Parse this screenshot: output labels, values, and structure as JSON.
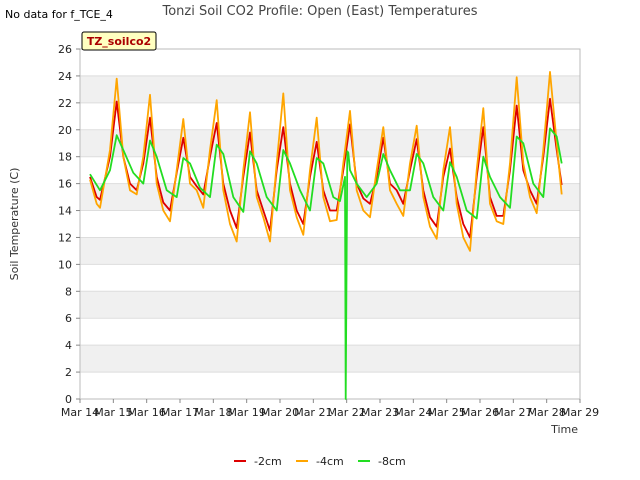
{
  "header": {
    "title": "Tonzi Soil CO2 Profile: Open (East) Temperatures",
    "no_data_note": "No data for f_TCE_4",
    "tag": "TZ_soilco2"
  },
  "colors": {
    "-2cm": "#dd0000",
    "-4cm": "#ffa500",
    "-8cm": "#22dd22",
    "band": "#f0f0f0",
    "tag_fill": "#ffffc0"
  },
  "chart_data": {
    "type": "line",
    "title": "Tonzi Soil CO2 Profile: Open (East) Temperatures",
    "xlabel": "Time",
    "ylabel": "Soil Temperature (C)",
    "xlim": [
      "Mar 14",
      "Mar 29"
    ],
    "ylim": [
      0,
      26
    ],
    "x_ticks": [
      "Mar 14",
      "Mar 15",
      "Mar 16",
      "Mar 17",
      "Mar 18",
      "Mar 19",
      "Mar 20",
      "Mar 21",
      "Mar 22",
      "Mar 23",
      "Mar 24",
      "Mar 25",
      "Mar 26",
      "Mar 27",
      "Mar 28",
      "Mar 29"
    ],
    "y_ticks": [
      0,
      2,
      4,
      6,
      8,
      10,
      12,
      14,
      16,
      18,
      20,
      22,
      24,
      26
    ],
    "grid": true,
    "legend_position": "bottom",
    "series": [
      {
        "name": "-2cm",
        "x": [
          14.3,
          14.5,
          14.6,
          14.9,
          15.1,
          15.3,
          15.5,
          15.7,
          15.9,
          16.1,
          16.3,
          16.5,
          16.7,
          16.9,
          17.1,
          17.3,
          17.5,
          17.7,
          17.9,
          18.1,
          18.3,
          18.5,
          18.7,
          18.9,
          19.1,
          19.3,
          19.5,
          19.7,
          19.9,
          20.1,
          20.3,
          20.5,
          20.7,
          20.9,
          21.1,
          21.3,
          21.5,
          21.7,
          21.9,
          22.1,
          22.3,
          22.5,
          22.7,
          22.9,
          23.1,
          23.3,
          23.5,
          23.7,
          23.9,
          24.1,
          24.3,
          24.5,
          24.7,
          24.9,
          25.1,
          25.3,
          25.5,
          25.7,
          25.9,
          26.1,
          26.3,
          26.5,
          26.7,
          26.9,
          27.1,
          27.3,
          27.5,
          27.7,
          27.9,
          28.1,
          28.3,
          28.45
        ],
        "y": [
          16.5,
          15.0,
          14.8,
          18.0,
          22.1,
          18.0,
          16.0,
          15.5,
          17.5,
          20.9,
          16.5,
          14.6,
          14.0,
          16.8,
          19.4,
          16.5,
          15.8,
          15.2,
          18.0,
          20.5,
          16.0,
          14.0,
          12.7,
          16.5,
          19.8,
          15.5,
          14.0,
          12.5,
          17.0,
          20.2,
          16.0,
          14.0,
          13.0,
          16.5,
          19.1,
          15.5,
          14.0,
          14.0,
          17.0,
          20.4,
          16.0,
          14.9,
          14.5,
          16.5,
          19.4,
          16.0,
          15.5,
          14.5,
          17.0,
          19.3,
          15.5,
          13.5,
          12.8,
          16.5,
          18.6,
          15.0,
          13.0,
          12.0,
          16.5,
          20.2,
          15.0,
          13.6,
          13.6,
          17.0,
          21.8,
          17.0,
          15.5,
          14.5,
          18.0,
          22.3,
          18.5,
          15.9
        ]
      },
      {
        "name": "-4cm",
        "x": [
          14.3,
          14.5,
          14.6,
          14.9,
          15.1,
          15.3,
          15.5,
          15.7,
          15.9,
          16.1,
          16.3,
          16.5,
          16.7,
          16.9,
          17.1,
          17.3,
          17.5,
          17.7,
          17.9,
          18.1,
          18.3,
          18.5,
          18.7,
          18.9,
          19.1,
          19.3,
          19.5,
          19.7,
          19.9,
          20.1,
          20.3,
          20.5,
          20.7,
          20.9,
          21.1,
          21.3,
          21.5,
          21.7,
          21.9,
          22.1,
          22.3,
          22.5,
          22.7,
          22.9,
          23.1,
          23.3,
          23.5,
          23.7,
          23.9,
          24.1,
          24.3,
          24.5,
          24.7,
          24.9,
          25.1,
          25.3,
          25.5,
          25.7,
          25.9,
          26.1,
          26.3,
          26.5,
          26.7,
          26.9,
          27.1,
          27.3,
          27.5,
          27.7,
          27.9,
          28.1,
          28.3,
          28.45
        ],
        "y": [
          16.3,
          14.5,
          14.2,
          18.5,
          23.8,
          18.0,
          15.5,
          15.2,
          18.0,
          22.6,
          16.0,
          14.0,
          13.2,
          17.0,
          20.8,
          16.0,
          15.5,
          14.2,
          18.5,
          22.2,
          15.5,
          13.0,
          11.7,
          17.0,
          21.3,
          15.0,
          13.5,
          11.7,
          17.5,
          22.7,
          15.5,
          13.5,
          12.2,
          17.0,
          20.9,
          15.0,
          13.2,
          13.3,
          17.5,
          21.4,
          15.5,
          14.0,
          13.5,
          17.0,
          20.2,
          15.5,
          14.5,
          13.6,
          17.5,
          20.3,
          15.0,
          12.8,
          11.9,
          17.0,
          20.2,
          14.5,
          12.0,
          11.0,
          17.0,
          21.6,
          14.5,
          13.2,
          13.0,
          17.5,
          23.9,
          17.5,
          15.0,
          13.8,
          18.5,
          24.3,
          19.0,
          15.2
        ]
      },
      {
        "name": "-8cm",
        "x": [
          14.3,
          14.6,
          14.9,
          15.1,
          15.3,
          15.6,
          15.9,
          16.1,
          16.3,
          16.6,
          16.9,
          17.1,
          17.3,
          17.6,
          17.9,
          18.1,
          18.3,
          18.6,
          18.9,
          19.1,
          19.3,
          19.6,
          19.9,
          20.1,
          20.3,
          20.6,
          20.9,
          21.1,
          21.3,
          21.6,
          21.8,
          21.95,
          21.97,
          22.02,
          22.05,
          22.1,
          22.3,
          22.6,
          22.9,
          23.1,
          23.3,
          23.6,
          23.9,
          24.1,
          24.3,
          24.6,
          24.9,
          25.1,
          25.3,
          25.6,
          25.9,
          26.1,
          26.3,
          26.6,
          26.9,
          27.1,
          27.3,
          27.6,
          27.9,
          28.1,
          28.3,
          28.45
        ],
        "y": [
          16.7,
          15.5,
          17.0,
          19.6,
          18.5,
          16.8,
          16.0,
          19.2,
          18.0,
          15.5,
          15.0,
          17.9,
          17.5,
          15.7,
          15.0,
          18.9,
          18.2,
          15.0,
          13.9,
          18.4,
          17.5,
          15.0,
          14.0,
          18.5,
          17.5,
          15.5,
          14.0,
          17.9,
          17.5,
          15.0,
          14.7,
          16.5,
          0.0,
          18.4,
          18.3,
          17.0,
          16.0,
          15.0,
          16.0,
          18.2,
          17.0,
          15.5,
          15.5,
          18.2,
          17.5,
          15.0,
          14.0,
          17.6,
          16.5,
          14.0,
          13.4,
          18.0,
          16.5,
          15.0,
          14.2,
          19.5,
          19.0,
          16.0,
          15.0,
          20.1,
          19.5,
          17.5
        ]
      }
    ]
  },
  "legend": [
    {
      "key": "-2cm",
      "label": "-2cm"
    },
    {
      "key": "-4cm",
      "label": "-4cm"
    },
    {
      "key": "-8cm",
      "label": "-8cm"
    }
  ]
}
